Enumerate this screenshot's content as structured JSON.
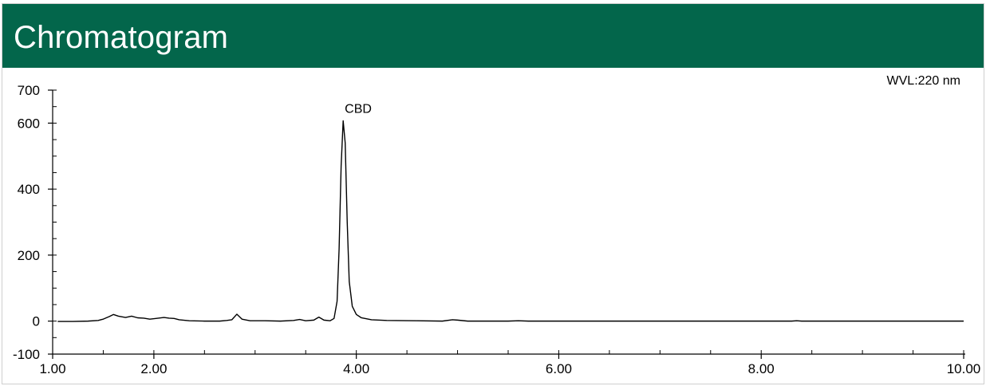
{
  "header": {
    "title": "Chromatogram"
  },
  "chart_data": {
    "type": "line",
    "title": "Chromatogram",
    "xlabel": "",
    "ylabel": "",
    "xlim": [
      1.0,
      10.0
    ],
    "ylim": [
      -100,
      700
    ],
    "x_ticks": [
      1.0,
      2.0,
      4.0,
      6.0,
      8.0,
      10.0
    ],
    "x_tick_labels": [
      "1.00",
      "2.00",
      "4.00",
      "6.00",
      "8.00",
      "10.00"
    ],
    "y_ticks": [
      700,
      600,
      400,
      200,
      0,
      -100
    ],
    "y_tick_labels": [
      "700",
      "600",
      "400",
      "200",
      "0",
      "-100"
    ],
    "annotations": [
      {
        "text": "WVL:220 nm",
        "position": "top-right"
      },
      {
        "text": "CBD",
        "x": 3.87,
        "y": 607
      }
    ],
    "series": [
      {
        "color": "#000000",
        "points": [
          [
            1.05,
            -1
          ],
          [
            1.2,
            -1
          ],
          [
            1.35,
            0
          ],
          [
            1.45,
            2
          ],
          [
            1.5,
            6
          ],
          [
            1.56,
            14
          ],
          [
            1.6,
            20
          ],
          [
            1.65,
            15
          ],
          [
            1.72,
            11
          ],
          [
            1.78,
            15
          ],
          [
            1.84,
            10
          ],
          [
            1.9,
            9
          ],
          [
            1.96,
            6
          ],
          [
            2.02,
            8
          ],
          [
            2.1,
            11
          ],
          [
            2.15,
            9
          ],
          [
            2.2,
            8
          ],
          [
            2.25,
            4
          ],
          [
            2.35,
            1
          ],
          [
            2.5,
            0
          ],
          [
            2.65,
            0
          ],
          [
            2.72,
            2
          ],
          [
            2.77,
            4
          ],
          [
            2.82,
            21
          ],
          [
            2.87,
            6
          ],
          [
            2.95,
            1
          ],
          [
            3.1,
            1
          ],
          [
            3.25,
            0
          ],
          [
            3.38,
            2
          ],
          [
            3.44,
            5
          ],
          [
            3.5,
            1
          ],
          [
            3.58,
            3
          ],
          [
            3.63,
            12
          ],
          [
            3.68,
            3
          ],
          [
            3.74,
            1
          ],
          [
            3.78,
            8
          ],
          [
            3.81,
            60
          ],
          [
            3.83,
            220
          ],
          [
            3.85,
            470
          ],
          [
            3.87,
            607
          ],
          [
            3.89,
            540
          ],
          [
            3.91,
            300
          ],
          [
            3.93,
            120
          ],
          [
            3.96,
            45
          ],
          [
            4.0,
            20
          ],
          [
            4.05,
            10
          ],
          [
            4.15,
            4
          ],
          [
            4.3,
            2
          ],
          [
            4.6,
            1
          ],
          [
            4.85,
            0
          ],
          [
            4.95,
            4
          ],
          [
            5.0,
            3
          ],
          [
            5.1,
            0
          ],
          [
            5.5,
            0
          ],
          [
            5.6,
            1
          ],
          [
            5.7,
            0
          ],
          [
            6.5,
            0
          ],
          [
            8.3,
            0
          ],
          [
            8.35,
            1
          ],
          [
            8.4,
            0
          ],
          [
            10.0,
            0
          ]
        ]
      }
    ]
  }
}
